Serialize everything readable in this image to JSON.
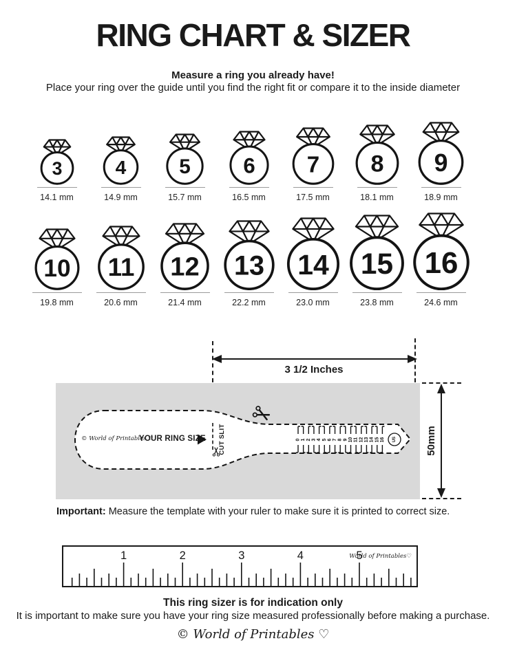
{
  "title": "RING CHART & SIZER",
  "intro": {
    "headline": "Measure a ring you already have!",
    "subtext": "Place your ring over the guide until you find the right fit or compare it to the inside diameter"
  },
  "ring_chart": {
    "rows": [
      {
        "rings": [
          {
            "size": "3",
            "diameter_label": "14.1 mm",
            "mm": 14.1
          },
          {
            "size": "4",
            "diameter_label": "14.9 mm",
            "mm": 14.9
          },
          {
            "size": "5",
            "diameter_label": "15.7 mm",
            "mm": 15.7
          },
          {
            "size": "6",
            "diameter_label": "16.5 mm",
            "mm": 16.5
          },
          {
            "size": "7",
            "diameter_label": "17.5 mm",
            "mm": 17.5
          },
          {
            "size": "8",
            "diameter_label": "18.1 mm",
            "mm": 18.1
          },
          {
            "size": "9",
            "diameter_label": "18.9 mm",
            "mm": 18.9
          }
        ]
      },
      {
        "rings": [
          {
            "size": "10",
            "diameter_label": "19.8 mm",
            "mm": 19.8
          },
          {
            "size": "11",
            "diameter_label": "20.6 mm",
            "mm": 20.6
          },
          {
            "size": "12",
            "diameter_label": "21.4 mm",
            "mm": 21.4
          },
          {
            "size": "13",
            "diameter_label": "22.2 mm",
            "mm": 22.2
          },
          {
            "size": "14",
            "diameter_label": "23.0 mm",
            "mm": 23.0
          },
          {
            "size": "15",
            "diameter_label": "23.8 mm",
            "mm": 23.8
          },
          {
            "size": "16",
            "diameter_label": "24.6 mm",
            "mm": 24.6
          }
        ]
      }
    ]
  },
  "sizer": {
    "width_dimension_label": "3 1/2 Inches",
    "height_dimension_label": "50mm",
    "brand_label": "© World of Printables ♡",
    "ring_size_label": "YOUR RING SIZE",
    "cut_slit_label": "CUT SLIT",
    "scale_numbers": [
      "0",
      "1",
      "2",
      "3",
      "4",
      "5",
      "6",
      "7",
      "8",
      "9",
      "10",
      "11",
      "12",
      "13",
      "14",
      "15",
      "16"
    ],
    "unit_label": "US"
  },
  "important_note": {
    "lead": "Important:",
    "text": " Measure the template with your ruler to make sure it is printed to correct size."
  },
  "ruler": {
    "inch_numbers": [
      "1",
      "2",
      "3",
      "4",
      "5"
    ],
    "brand_label": "World of Printables♡"
  },
  "footer": {
    "headline": "This ring sizer is for indication only",
    "text": "It is important to make sure you have your ring size measured professionally before making a purchase.",
    "brand_label": "© World of Printables ♡"
  },
  "colors": {
    "ink": "#1a1a1a",
    "gray_panel": "#d9d9d9",
    "underline": "#9a9a9a"
  }
}
